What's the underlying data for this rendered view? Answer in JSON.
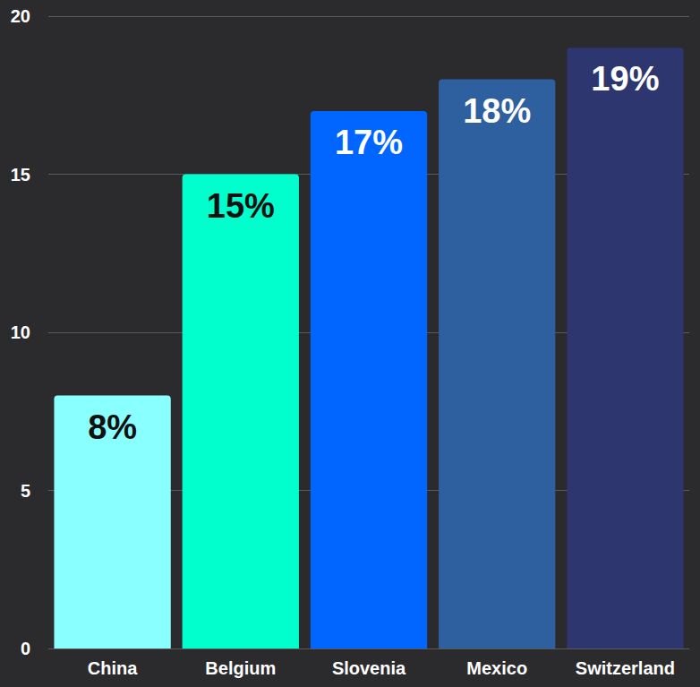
{
  "chart_data": {
    "type": "bar",
    "categories": [
      "China",
      "Belgium",
      "Slovenia",
      "Mexico",
      "Switzerland"
    ],
    "values": [
      8,
      15,
      17,
      18,
      19
    ],
    "value_labels": [
      "8%",
      "15%",
      "17%",
      "18%",
      "19%"
    ],
    "colors": [
      "#8affff",
      "#00ffcc",
      "#0066ff",
      "#2e5f9e",
      "#2e3670"
    ],
    "ylim": [
      0,
      20
    ],
    "yticks": [
      0,
      5,
      10,
      15,
      20
    ],
    "grid": true,
    "data_labels": true
  }
}
